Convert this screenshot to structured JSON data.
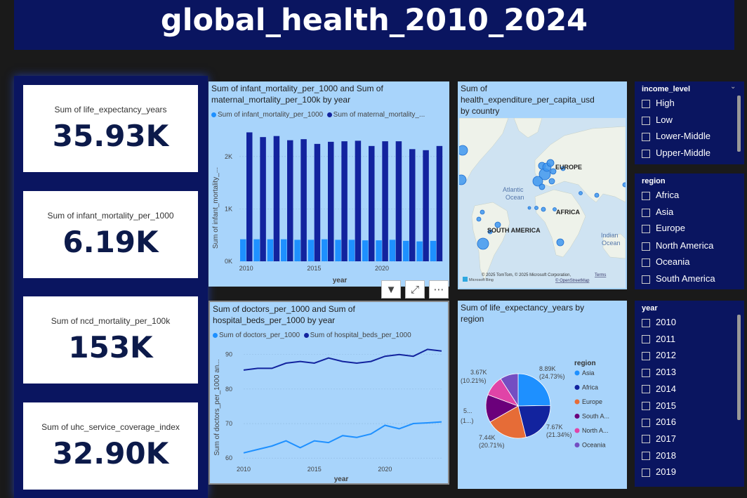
{
  "title": "global_health_2010_2024",
  "kpis": [
    {
      "label": "Sum of life_expectancy_years",
      "value": "35.93K"
    },
    {
      "label": "Sum of infant_mortality_per_1000",
      "value": "6.19K"
    },
    {
      "label": "Sum of ncd_mortality_per_100k",
      "value": "153K"
    },
    {
      "label": "Sum of uhc_service_coverage_index",
      "value": "32.90K"
    }
  ],
  "bar_chart": {
    "title_line1": "Sum of infant_mortality_per_1000 and Sum of",
    "title_line2": "maternal_mortality_per_100k by year",
    "legend_1": "Sum of infant_mortality_per_1000",
    "legend_2": "Sum of maternal_mortality_...",
    "ylabel": "Sum of infant_mortality_...",
    "xlabel": "year",
    "yticks": [
      "0K",
      "1K",
      "2K"
    ],
    "xticks": [
      "2010",
      "2015",
      "2020"
    ]
  },
  "line_chart": {
    "title_line1": "Sum of doctors_per_1000 and Sum of",
    "title_line2": "hospital_beds_per_1000 by year",
    "legend_1": "Sum of doctors_per_1000",
    "legend_2": "Sum of hospital_beds_per_1000",
    "ylabel": "Sum of doctors_per_1000 an...",
    "xlabel": "year",
    "yticks": [
      "60",
      "70",
      "80",
      "90"
    ],
    "xticks": [
      "2010",
      "2015",
      "2020"
    ]
  },
  "map_card": {
    "title_line1": "Sum of",
    "title_line2": "health_expenditure_per_capita_usd",
    "title_line3": "by country",
    "labels": {
      "europe": "EUROPE",
      "africa": "AFRICA",
      "south_america": "SOUTH AMERICA",
      "atlantic_1": "Atlantic",
      "atlantic_2": "Ocean",
      "indian_1": "Indian",
      "indian_2": "Ocean"
    },
    "attribution": "© 2025 TomTom, © 2025 Microsoft Corporation,",
    "terms": "Terms",
    "osm": "© OpenStreetMap",
    "brand": "Microsoft Bing"
  },
  "pie_card": {
    "title_line1": "Sum of life_expectancy_years by",
    "title_line2": "region",
    "legend_title": "region",
    "labels": [
      {
        "value": "8.89K",
        "pct": "(24.73%)"
      },
      {
        "value": "7.67K",
        "pct": "(21.34%)"
      },
      {
        "value": "7.44K",
        "pct": "(20.71%)"
      },
      {
        "value": "5...",
        "pct": "(1...)"
      },
      {
        "value": "3.67K",
        "pct": "(10.21%)"
      }
    ]
  },
  "slicers": {
    "income": {
      "title": "income_level",
      "items": [
        "High",
        "Low",
        "Lower-Middle",
        "Upper-Middle"
      ]
    },
    "region": {
      "title": "region",
      "items": [
        "Africa",
        "Asia",
        "Europe",
        "North America",
        "Oceania",
        "South America"
      ]
    },
    "year": {
      "title": "year",
      "items": [
        "2010",
        "2011",
        "2012",
        "2013",
        "2014",
        "2015",
        "2016",
        "2017",
        "2018",
        "2019"
      ]
    }
  },
  "chart_data": [
    {
      "type": "bar",
      "title": "Sum of infant_mortality_per_1000 and Sum of maternal_mortality_per_100k by year",
      "xlabel": "year",
      "ylabel": "Sum of infant_mortality_...",
      "categories": [
        "2010",
        "2011",
        "2012",
        "2013",
        "2014",
        "2015",
        "2016",
        "2017",
        "2018",
        "2019",
        "2020",
        "2021",
        "2022",
        "2023",
        "2024"
      ],
      "series": [
        {
          "name": "Sum of infant_mortality_per_1000",
          "color": "#1e90ff",
          "values": [
            420,
            420,
            420,
            420,
            410,
            410,
            420,
            410,
            410,
            400,
            400,
            410,
            390,
            380,
            390
          ]
        },
        {
          "name": "Sum of maternal_mortality_...",
          "color": "#12239e",
          "values": [
            2460,
            2370,
            2390,
            2310,
            2330,
            2240,
            2280,
            2290,
            2300,
            2200,
            2290,
            2290,
            2140,
            2120,
            2200
          ]
        }
      ],
      "ylim": [
        0,
        2600
      ]
    },
    {
      "type": "line",
      "title": "Sum of doctors_per_1000 and Sum of hospital_beds_per_1000 by year",
      "xlabel": "year",
      "ylabel": "Sum of doctors_per_1000 an...",
      "x": [
        "2010",
        "2011",
        "2012",
        "2013",
        "2014",
        "2015",
        "2016",
        "2017",
        "2018",
        "2019",
        "2020",
        "2021",
        "2022",
        "2023",
        "2024"
      ],
      "series": [
        {
          "name": "Sum of doctors_per_1000",
          "color": "#1e90ff",
          "values": [
            61.5,
            62.5,
            63.5,
            65,
            63,
            65,
            64.5,
            66.5,
            66,
            67,
            69.5,
            68.5,
            70,
            70.2,
            70.5
          ]
        },
        {
          "name": "Sum of hospital_beds_per_1000",
          "color": "#12239e",
          "values": [
            85.5,
            86,
            86,
            87.5,
            88,
            87.5,
            89,
            88,
            87.5,
            88,
            89.5,
            90,
            89.5,
            91.5,
            91
          ]
        }
      ],
      "ylim": [
        58,
        93
      ]
    },
    {
      "type": "pie",
      "title": "Sum of life_expectancy_years by region",
      "legend_title": "region",
      "slices": [
        {
          "name": "Asia",
          "value": 8890,
          "percent": 24.73,
          "color": "#1e90ff"
        },
        {
          "name": "Africa",
          "value": 7670,
          "percent": 21.34,
          "color": "#12239e"
        },
        {
          "name": "Europe",
          "value": 7440,
          "percent": 20.71,
          "color": "#e66c37"
        },
        {
          "name": "South A...",
          "value": 5000,
          "percent": 13.9,
          "color": "#6b007b"
        },
        {
          "name": "North A...",
          "value": 3670,
          "percent": 10.21,
          "color": "#e044a7"
        },
        {
          "name": "Oceania",
          "value": 3270,
          "percent": 9.1,
          "color": "#744ec2"
        }
      ]
    }
  ]
}
